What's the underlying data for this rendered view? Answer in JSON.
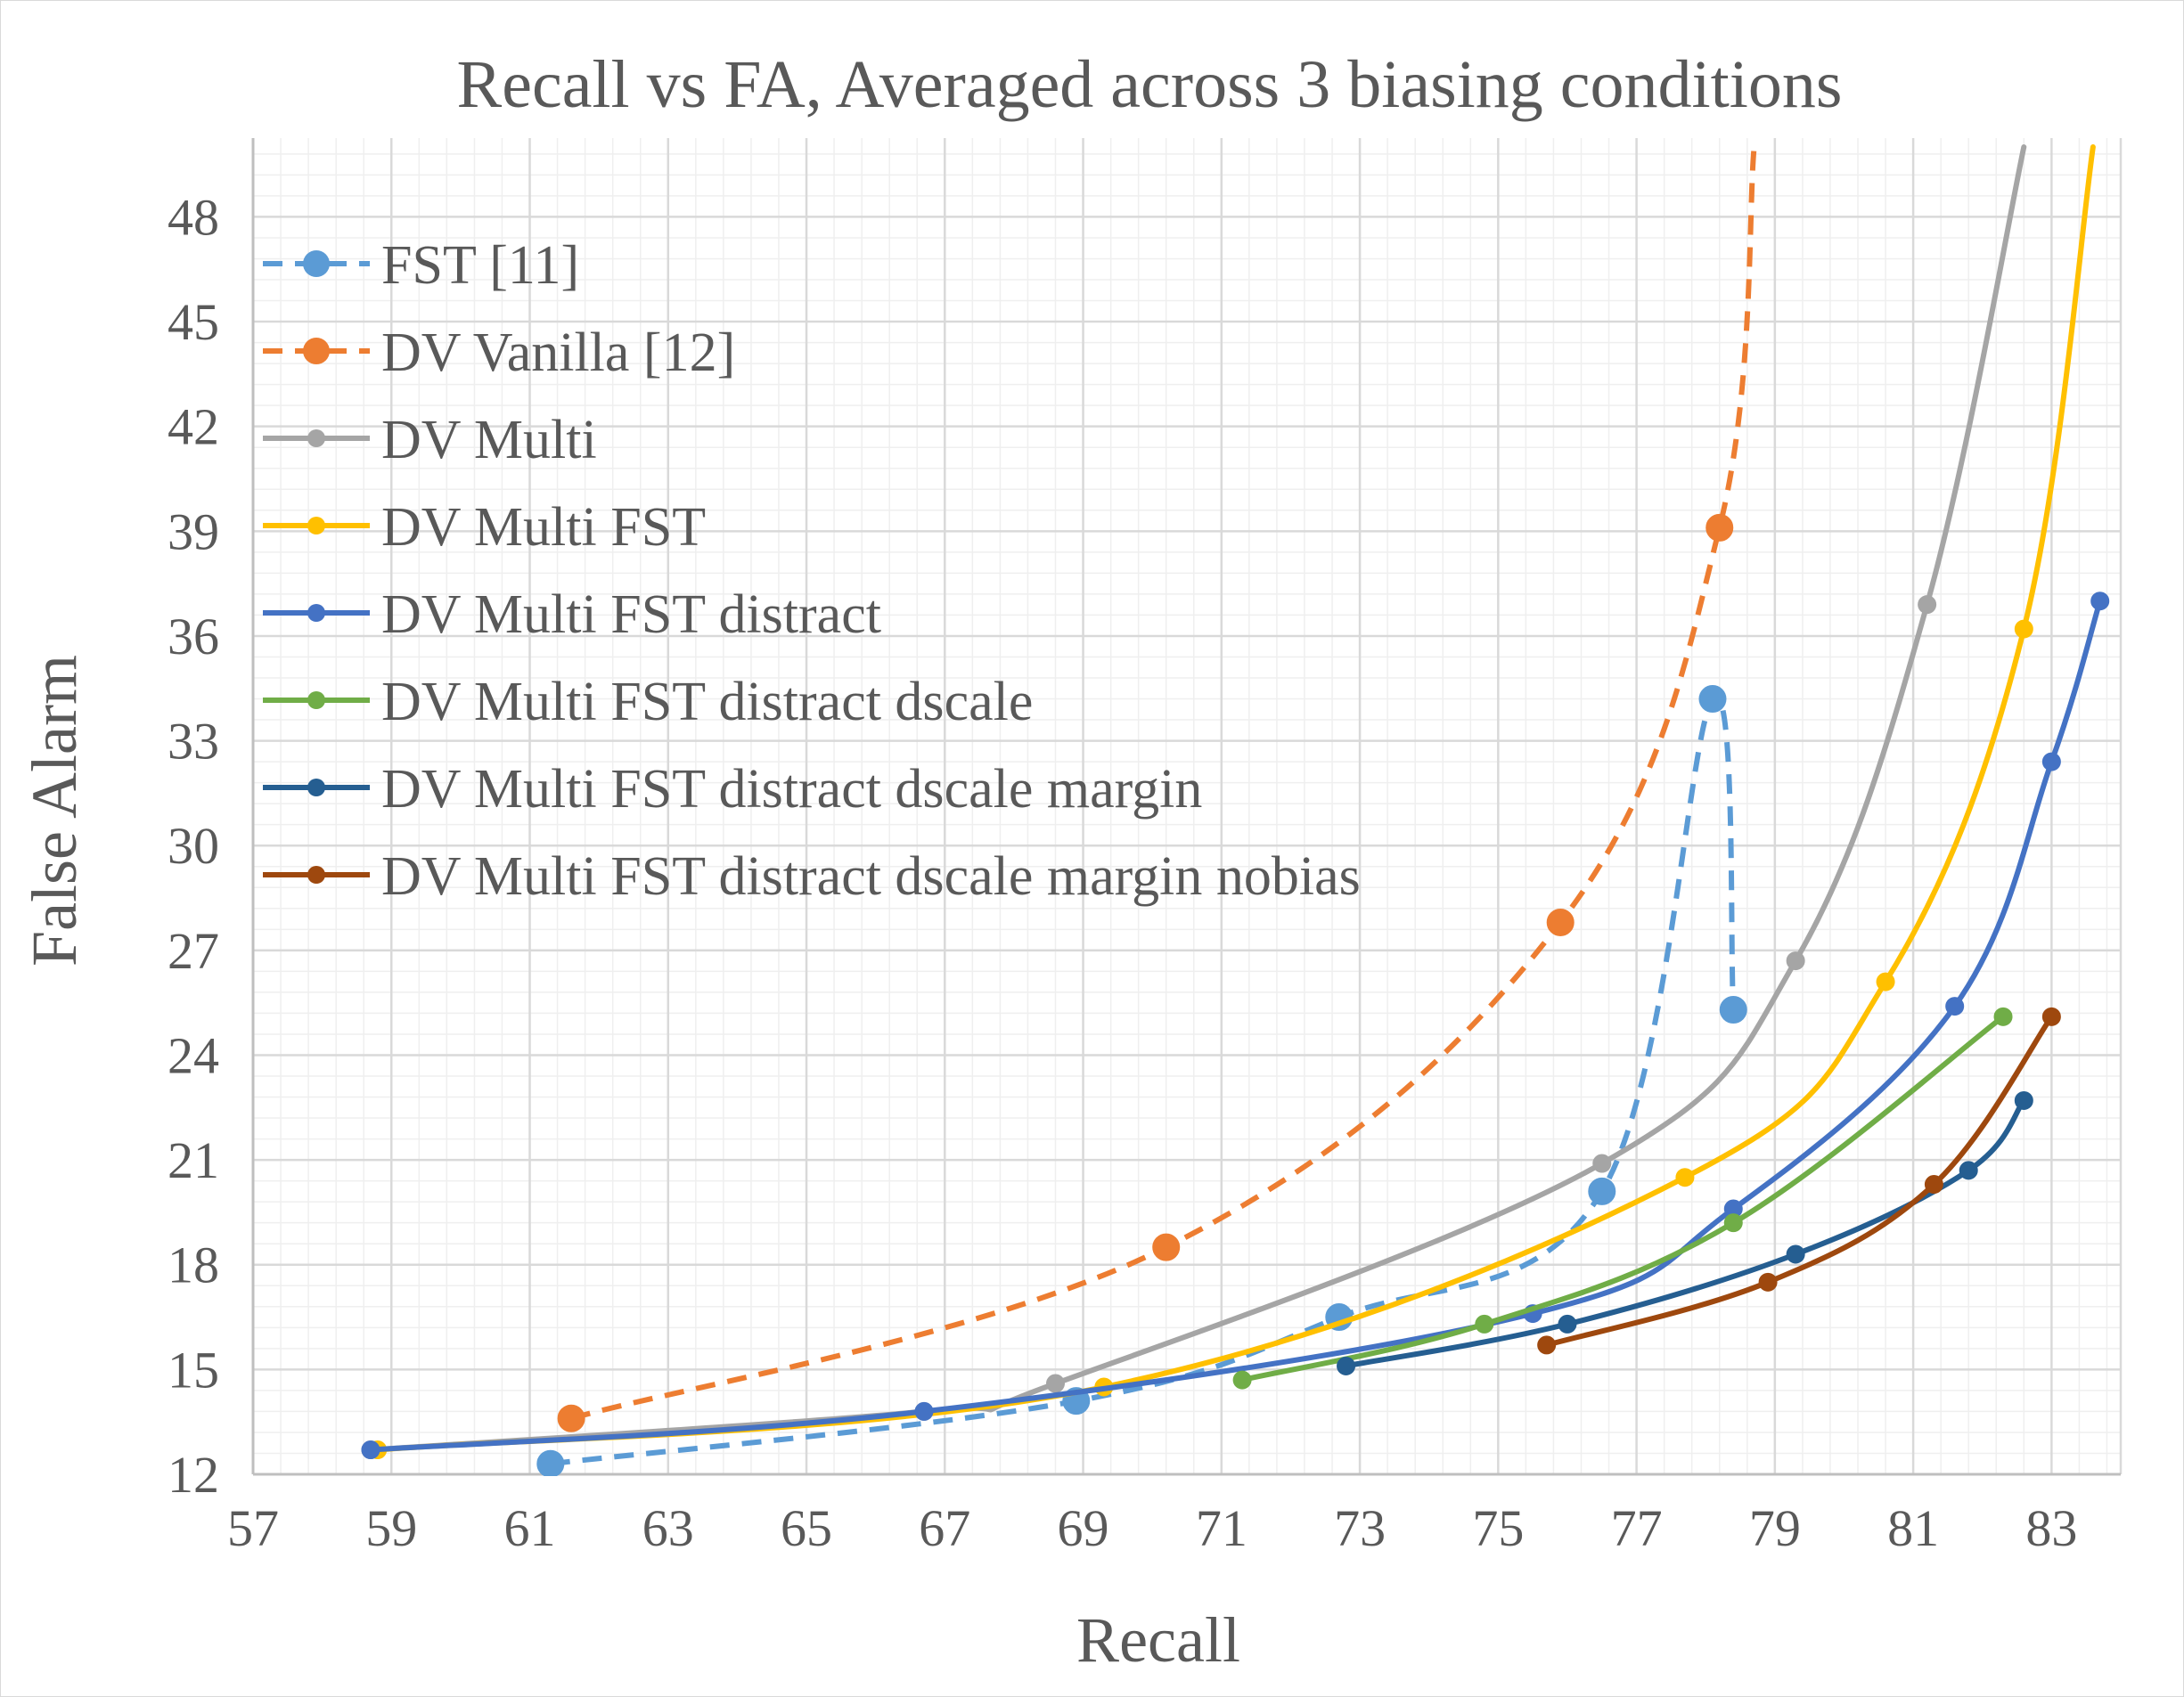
{
  "chart_data": {
    "type": "line",
    "title": "Recall vs FA, Averaged across 3 biasing conditions",
    "xlabel": "Recall",
    "ylabel": "False Alarm",
    "xlim": [
      57,
      84
    ],
    "ylim": [
      12,
      50
    ],
    "x_ticks": [
      57,
      59,
      61,
      63,
      65,
      67,
      69,
      71,
      73,
      75,
      77,
      79,
      81,
      83
    ],
    "y_ticks": [
      12,
      15,
      18,
      21,
      24,
      27,
      30,
      33,
      36,
      39,
      42,
      45,
      48
    ],
    "grid": true,
    "legend_position": "top-left",
    "series": [
      {
        "name": "FST [11]",
        "color": "#5b9bd5",
        "dashed": true,
        "marker": "large",
        "x": [
          61.3,
          68.9,
          72.7,
          76.5,
          78.1,
          78.4
        ],
        "y": [
          12.3,
          14.1,
          16.5,
          20.1,
          34.2,
          25.3
        ]
      },
      {
        "name": "DV Vanilla [12]",
        "color": "#ed7d31",
        "dashed": true,
        "marker": "large",
        "x": [
          61.6,
          70.2,
          75.9,
          78.2,
          78.7
        ],
        "y": [
          13.6,
          18.5,
          27.8,
          39.1,
          50.0
        ]
      },
      {
        "name": "DV Multi",
        "color": "#a5a5a5",
        "dashed": false,
        "marker": "small",
        "x": [
          58.7,
          66.7,
          68.6,
          76.5,
          79.3,
          81.2,
          82.6
        ],
        "y": [
          12.7,
          13.8,
          14.6,
          20.9,
          26.7,
          36.9,
          50.0
        ]
      },
      {
        "name": "DV Multi FST",
        "color": "#ffc000",
        "dashed": false,
        "marker": "small",
        "x": [
          58.8,
          69.3,
          77.7,
          80.6,
          82.6,
          83.6
        ],
        "y": [
          12.7,
          14.5,
          20.5,
          26.1,
          36.2,
          50.0
        ]
      },
      {
        "name": "DV Multi FST distract",
        "color": "#4472c4",
        "dashed": false,
        "marker": "small",
        "x": [
          58.7,
          66.7,
          75.5,
          78.4,
          81.6,
          83.0,
          83.7
        ],
        "y": [
          12.7,
          13.8,
          16.6,
          19.6,
          25.4,
          32.4,
          37.0
        ]
      },
      {
        "name": "DV Multi FST distract dscale",
        "color": "#70ad47",
        "dashed": false,
        "marker": "small",
        "x": [
          71.3,
          74.8,
          78.4,
          82.3
        ],
        "y": [
          14.7,
          16.3,
          19.2,
          25.1
        ]
      },
      {
        "name": "DV Multi FST distract dscale margin",
        "color": "#255e91",
        "dashed": false,
        "marker": "small",
        "x": [
          72.8,
          76.0,
          79.3,
          81.8,
          82.6
        ],
        "y": [
          15.1,
          16.3,
          18.3,
          20.7,
          22.7
        ]
      },
      {
        "name": "DV Multi FST distract dscale margin nobias",
        "color": "#9e480e",
        "dashed": false,
        "marker": "small",
        "x": [
          75.7,
          78.9,
          81.3,
          83.0
        ],
        "y": [
          15.7,
          17.5,
          20.3,
          25.1
        ]
      }
    ]
  }
}
